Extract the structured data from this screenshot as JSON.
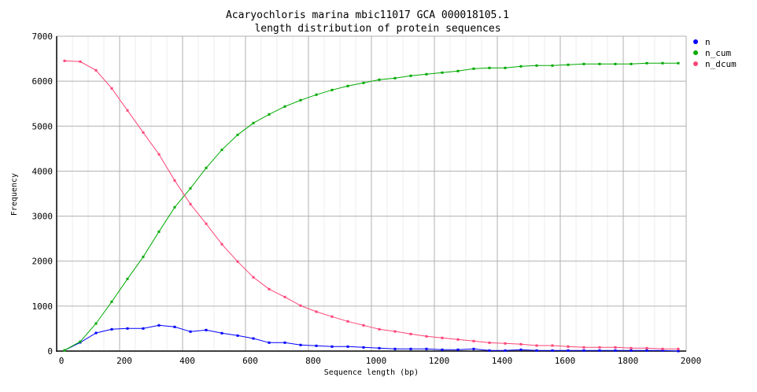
{
  "chart_data": {
    "type": "line",
    "title": [
      "Acaryochloris marina mbic11017 GCA 000018105.1",
      "length distribution of protein sequences"
    ],
    "xlabel": "Sequence length (bp)",
    "ylabel": "Frequency",
    "xlim": [
      0,
      2000
    ],
    "ylim": [
      0,
      7000
    ],
    "xticks": [
      0,
      200,
      400,
      600,
      800,
      1000,
      1200,
      1400,
      1600,
      1800,
      2000
    ],
    "yticks": [
      0,
      1000,
      2000,
      3000,
      4000,
      5000,
      6000,
      7000
    ],
    "grid": true,
    "legend_position": "right",
    "x": [
      25,
      75,
      125,
      175,
      225,
      275,
      325,
      375,
      425,
      475,
      525,
      575,
      625,
      675,
      725,
      775,
      825,
      875,
      925,
      975,
      1025,
      1075,
      1125,
      1175,
      1225,
      1275,
      1325,
      1375,
      1425,
      1475,
      1525,
      1575,
      1625,
      1675,
      1725,
      1775,
      1825,
      1875,
      1925,
      1975
    ],
    "series": [
      {
        "name": "n",
        "color": "#0000ff",
        "values": [
          17,
          193,
          402,
          484,
          502,
          502,
          572,
          537,
          432,
          467,
          397,
          344,
          280,
          187,
          187,
          135,
          117,
          99,
          99,
          82,
          64,
          47,
          47,
          47,
          29,
          29,
          47,
          12,
          12,
          29,
          12,
          12,
          12,
          12,
          12,
          12,
          12,
          12,
          12,
          0
        ]
      },
      {
        "name": "n_cum",
        "color": "#00aa00",
        "values": [
          17,
          210,
          612,
          1097,
          1604,
          2094,
          2654,
          3197,
          3617,
          4072,
          4474,
          4807,
          5069,
          5262,
          5437,
          5577,
          5699,
          5804,
          5892,
          5962,
          6032,
          6067,
          6120,
          6155,
          6190,
          6225,
          6277,
          6295,
          6295,
          6330,
          6347,
          6347,
          6365,
          6382,
          6382,
          6382,
          6382,
          6400,
          6400,
          6400
        ]
      },
      {
        "name": "n_dcum",
        "color": "#ff4477",
        "values": [
          6452,
          6435,
          6242,
          5840,
          5350,
          4860,
          4375,
          3792,
          3267,
          2830,
          2375,
          1990,
          1640,
          1377,
          1202,
          1010,
          875,
          765,
          660,
          572,
          485,
          437,
          379,
          327,
          292,
          257,
          222,
          185,
          169,
          152,
          122,
          122,
          99,
          82,
          82,
          82,
          64,
          64,
          47,
          47
        ]
      }
    ]
  }
}
